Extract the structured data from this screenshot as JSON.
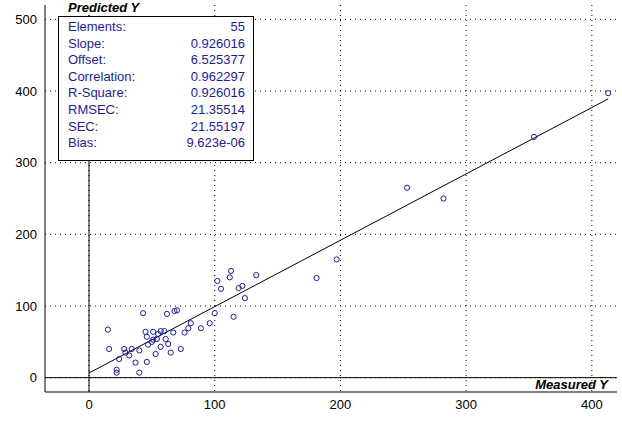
{
  "chart_data": {
    "type": "scatter",
    "x_label": "Measured Y",
    "y_label": "Predicted Y",
    "color": "#1c1c9c",
    "marker": "circle",
    "grid": true,
    "xlim": [
      -35,
      420
    ],
    "ylim": [
      -20,
      520
    ],
    "xticks": [
      0,
      100,
      200,
      300,
      400
    ],
    "yticks": [
      0,
      100,
      200,
      300,
      400,
      500
    ],
    "x": [
      15,
      16,
      22,
      22,
      24,
      28,
      29,
      32,
      34,
      37,
      40,
      40,
      43,
      45,
      46,
      46,
      50,
      51,
      53,
      51,
      54,
      55,
      57,
      57,
      60,
      61,
      62,
      63,
      65,
      67,
      68,
      70,
      73,
      76,
      79,
      81,
      89,
      96,
      100,
      102,
      105,
      112,
      113,
      115,
      119,
      122,
      124,
      133,
      181,
      197,
      253,
      282,
      354,
      413,
      47
    ],
    "values": [
      67,
      40,
      11,
      7,
      26,
      40,
      35,
      31,
      40,
      21,
      7,
      38,
      90,
      64,
      22,
      57,
      50,
      64,
      33,
      53,
      54,
      61,
      43,
      65,
      65,
      54,
      89,
      47,
      35,
      63,
      93,
      94,
      40,
      63,
      69,
      76,
      69,
      76,
      90,
      135,
      124,
      140,
      149,
      85,
      125,
      128,
      111,
      143,
      139,
      165,
      265,
      250,
      336,
      397,
      46
    ],
    "stats": [
      {
        "name": "Elements:",
        "value": 55
      },
      {
        "name": "Slope:",
        "value": 0.926016
      },
      {
        "name": "Offset:",
        "value": 6.525377
      },
      {
        "name": "Correlation:",
        "value": 0.962297
      },
      {
        "name": "R-Square:",
        "value": 0.926016
      },
      {
        "name": "RMSEC:",
        "value": 21.35514
      },
      {
        "name": "SEC:",
        "value": 21.55197
      },
      {
        "name": "Bias:",
        "value": 9.623e-06,
        "text": "9.623e-06"
      }
    ]
  }
}
